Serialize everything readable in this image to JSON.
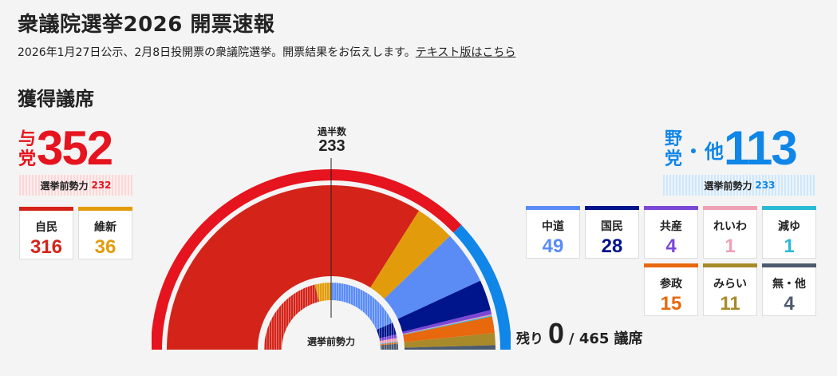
{
  "page_title": "衆議院選挙2026 開票速報",
  "lead_text": "2026年1月27日公示、2月8日投開票の衆議院選挙。開票結果をお伝えします。",
  "text_version_link": "テキスト版はこちら",
  "section_title": "獲得議席",
  "ruling": {
    "label_line1": "与",
    "label_line2": "党",
    "total": "352",
    "prev_label": "選挙前勢力",
    "prev_value": "232",
    "color": "#e5141e",
    "parties": [
      {
        "name": "自民",
        "seats": "316",
        "prev": 196,
        "color": "#d4241a"
      },
      {
        "name": "維新",
        "seats": "36",
        "prev": 36,
        "color": "#e29c0b"
      }
    ]
  },
  "opposition": {
    "label_line1": "野",
    "label_line2": "党",
    "label_dot": "・",
    "label_other": "他",
    "total": "113",
    "prev_label": "選挙前勢力",
    "prev_value": "233",
    "color": "#1086e8",
    "parties": [
      {
        "name": "中道",
        "seats": "49",
        "prev": 172,
        "color": "#5b8cf6"
      },
      {
        "name": "国民",
        "seats": "28",
        "prev": 27,
        "color": "#00148c"
      },
      {
        "name": "共産",
        "seats": "4",
        "prev": 8,
        "color": "#7b47d6"
      },
      {
        "name": "れいわ",
        "seats": "1",
        "prev": 8,
        "color": "#f0a0b4"
      },
      {
        "name": "減ゆ",
        "seats": "1",
        "prev": 2,
        "color": "#2bbad6"
      },
      {
        "name": "参政",
        "seats": "15",
        "prev": 3,
        "color": "#e8680e"
      },
      {
        "name": "みらい",
        "seats": "11",
        "prev": 0,
        "color": "#a88a2a"
      },
      {
        "name": "無・他",
        "seats": "4",
        "prev": 13,
        "color": "#4c5a6e"
      }
    ]
  },
  "majority": {
    "label": "過半数",
    "value": "233"
  },
  "center_label": "選挙前勢力",
  "remaining": {
    "label": "残り",
    "value": "0",
    "total": "/ 465",
    "unit": "議席"
  },
  "total_seats": 465
}
